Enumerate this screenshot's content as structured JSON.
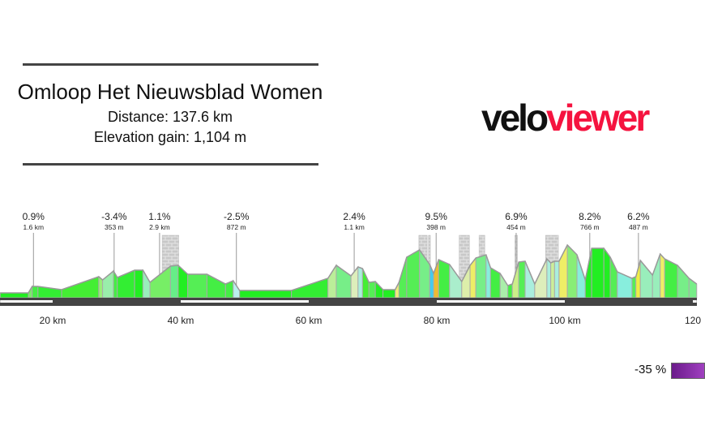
{
  "header": {
    "title": "Omloop Het Nieuwsblad Women",
    "distance": "Distance: 137.6 km",
    "elevation_gain": "Elevation gain: 1,104 m"
  },
  "logo": {
    "part1": "velo",
    "part2": "viewer",
    "color1": "#111111",
    "color2": "#f5133f"
  },
  "legend": {
    "min_label": "-35 %",
    "gradient_colors": [
      "#6a1b8a",
      "#a040c0"
    ]
  },
  "chart_data": {
    "type": "area",
    "title": "",
    "xlabel": "",
    "ylabel": "",
    "x_unit": "km",
    "x_ticks": [
      "20 km",
      "40 km",
      "60 km",
      "80 km",
      "100 km",
      "120"
    ],
    "x_tick_values": [
      20,
      40,
      60,
      80,
      100,
      120
    ],
    "x_range": [
      11.8,
      120.6
    ],
    "profile_km": [
      11.8,
      16.2,
      16.8,
      17.7,
      21.4,
      27.2,
      27.8,
      29.5,
      30.1,
      32.8,
      34.1,
      35.2,
      38.4,
      39.6,
      41.1,
      44.1,
      47.0,
      48.2,
      49.2,
      57.3,
      63.0,
      64.3,
      66.6,
      67.7,
      68.4,
      69.4,
      70.4,
      71.6,
      73.5,
      74.1,
      75.3,
      77.3,
      78.9,
      79.5,
      80.3,
      82.0,
      83.9,
      85.2,
      86.1,
      87.7,
      88.4,
      89.9,
      91.1,
      91.8,
      92.8,
      93.8,
      95.3,
      97.2,
      97.8,
      98.4,
      99.1,
      100.4,
      101.9,
      103.2,
      104.2,
      106.1,
      107.1,
      108.2,
      110.5,
      111.1,
      111.8,
      113.7,
      114.9,
      115.6,
      117.6,
      119.4,
      120.6
    ],
    "profile_elevation_relative": [
      6,
      6,
      14,
      14,
      10,
      26,
      22,
      33,
      25,
      34,
      34,
      19,
      39,
      40,
      29,
      29,
      17,
      21,
      9,
      9,
      24,
      40,
      27,
      38,
      36,
      19,
      20,
      10,
      10,
      19,
      50,
      59,
      41,
      30,
      47,
      41,
      20,
      40,
      49,
      53,
      37,
      30,
      15,
      17,
      44,
      45,
      17,
      48,
      43,
      45,
      45,
      65,
      53,
      22,
      61,
      61,
      50,
      32,
      24,
      26,
      46,
      28,
      54,
      48,
      40,
      24,
      17
    ],
    "segment_colors": [
      "#22ee22",
      "#77ee66",
      "#44ee44",
      "#33ee33",
      "#44ee33",
      "#99ee77",
      "#99eeaa",
      "#44ee44",
      "#33ee33",
      "#22ee22",
      "#99eebb",
      "#77ee66",
      "#66ee88",
      "#22ee22",
      "#55ee55",
      "#44ee44",
      "#44ee44",
      "#bbf0ee",
      "#22ee22",
      "#33ee33",
      "#bbee99",
      "#77ee88",
      "#ddeebb",
      "#aaeedd",
      "#44ee33",
      "#55ee55",
      "#22ee22",
      "#22ee22",
      "#eeee77",
      "#55ee55",
      "#55ee55",
      "#77ee88",
      "#44ccee",
      "#eebb33",
      "#44ee44",
      "#aaeecc",
      "#ddeeaa",
      "#eeee66",
      "#77ee88",
      "#88eedd",
      "#44ee44",
      "#aaeeaa",
      "#44ee44",
      "#ccee88",
      "#55ee55",
      "#aaeedd",
      "#ddeebb",
      "#aaeedd",
      "#ccee99",
      "#aaeedd",
      "#eeee66",
      "#88ee77",
      "#88eedd",
      "#22ee22",
      "#22ee22",
      "#22ee22",
      "#55ee55",
      "#88eedd",
      "#55ee55",
      "#eeee44",
      "#99eebb",
      "#99eebb",
      "#eeee66",
      "#44ee44",
      "#77ee88",
      "#77ee88"
    ],
    "climbs": [
      {
        "gradient": "0.9%",
        "length": "1.6 km",
        "km": 17.0
      },
      {
        "gradient": "-3.4%",
        "length": "353 m",
        "km": 29.6
      },
      {
        "gradient": "1.1%",
        "length": "2.9 km",
        "km": 36.7
      },
      {
        "gradient": "-2.5%",
        "length": "872 m",
        "km": 48.7
      },
      {
        "gradient": "2.4%",
        "length": "1.1 km",
        "km": 67.1
      },
      {
        "gradient": "9.5%",
        "length": "398 m",
        "km": 79.9
      },
      {
        "gradient": "6.9%",
        "length": "454 m",
        "km": 92.4
      },
      {
        "gradient": "8.2%",
        "length": "766 m",
        "km": 103.9
      },
      {
        "gradient": "6.2%",
        "length": "487 m",
        "km": 111.5
      }
    ],
    "cobbled_sectors_km": [
      [
        37.1,
        39.7
      ],
      [
        77.2,
        78.5
      ],
      [
        78.7,
        79.0
      ],
      [
        83.5,
        85.1
      ],
      [
        86.6,
        87.5
      ],
      [
        92.2,
        92.6
      ],
      [
        97.0,
        99.0
      ]
    ]
  }
}
